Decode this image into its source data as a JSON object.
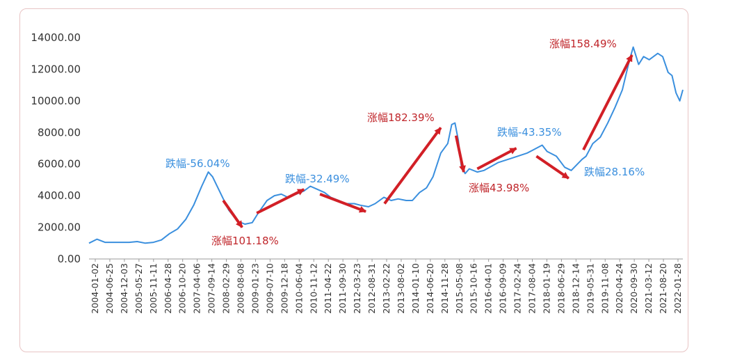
{
  "chart_data": {
    "type": "line",
    "title": "",
    "xlabel": "",
    "ylabel": "",
    "ylim": [
      0,
      14000
    ],
    "y_ticks": [
      "0.00",
      "2000.00",
      "4000.00",
      "6000.00",
      "8000.00",
      "10000.00",
      "12000.00",
      "14000.00"
    ],
    "x_ticks": [
      "2004-01-02",
      "2004-06-25",
      "2004-12-03",
      "2005-05-27",
      "2005-11-11",
      "2006-04-28",
      "2006-10-20",
      "2007-04-06",
      "2007-09-14",
      "2008-02-29",
      "2008-08-08",
      "2009-01-23",
      "2009-07-10",
      "2009-12-18",
      "2010-06-04",
      "2010-11-12",
      "2011-04-22",
      "2011-09-30",
      "2012-03-23",
      "2012-08-31",
      "2013-02-22",
      "2013-08-02",
      "2014-01-10",
      "2014-06-20",
      "2014-11-28",
      "2015-05-08",
      "2015-10-16",
      "2016-04-01",
      "2016-09-09",
      "2017-02-24",
      "2017-08-04",
      "2018-01-19",
      "2018-06-29",
      "2018-12-14",
      "2019-05-31",
      "2019-11-08",
      "2020-04-24",
      "2020-09-30",
      "2021-03-12",
      "2021-08-20",
      "2022-01-28"
    ],
    "grid": false,
    "series": [
      {
        "color": "#3a8fde",
        "x": [
          "2004-01-02",
          "2004-04-01",
          "2004-07-01",
          "2004-10-01",
          "2005-01-01",
          "2005-04-01",
          "2005-07-01",
          "2005-10-01",
          "2006-01-01",
          "2006-04-01",
          "2006-07-01",
          "2006-10-01",
          "2007-01-01",
          "2007-04-01",
          "2007-07-01",
          "2007-09-14",
          "2007-11-01",
          "2008-01-01",
          "2008-03-01",
          "2008-05-01",
          "2008-08-08",
          "2008-11-01",
          "2009-01-23",
          "2009-04-01",
          "2009-07-10",
          "2009-10-01",
          "2009-12-18",
          "2010-03-01",
          "2010-06-04",
          "2010-09-01",
          "2010-11-12",
          "2011-02-01",
          "2011-04-22",
          "2011-07-01",
          "2011-09-30",
          "2011-12-15",
          "2012-03-23",
          "2012-06-01",
          "2012-08-31",
          "2012-11-15",
          "2013-02-22",
          "2013-05-15",
          "2013-08-02",
          "2013-11-01",
          "2014-01-10",
          "2014-04-01",
          "2014-06-20",
          "2014-09-01",
          "2014-11-28",
          "2015-02-15",
          "2015-04-01",
          "2015-05-08",
          "2015-06-15",
          "2015-07-20",
          "2015-08-31",
          "2015-10-16",
          "2016-01-15",
          "2016-04-01",
          "2016-09-09",
          "2017-02-24",
          "2017-08-04",
          "2018-01-19",
          "2018-03-15",
          "2018-06-29",
          "2018-10-01",
          "2018-12-14",
          "2019-04-15",
          "2019-05-31",
          "2019-08-15",
          "2019-11-08",
          "2020-02-01",
          "2020-04-24",
          "2020-07-15",
          "2020-09-30",
          "2020-11-15",
          "2021-01-15",
          "2021-03-12",
          "2021-05-15",
          "2021-08-20",
          "2021-10-15",
          "2021-12-15",
          "2022-01-28",
          "2022-03-15",
          "2022-04-26",
          "2022-05-31"
        ],
        "y": [
          1000,
          1250,
          1050,
          1050,
          1050,
          1050,
          1100,
          1000,
          1050,
          1200,
          1600,
          1900,
          2500,
          3400,
          4600,
          5500,
          5200,
          4500,
          3800,
          3100,
          2400,
          2200,
          2300,
          2900,
          3700,
          4000,
          4100,
          3900,
          4100,
          4300,
          4600,
          4400,
          4200,
          3900,
          3700,
          3500,
          3500,
          3400,
          3300,
          3500,
          3900,
          3700,
          3800,
          3700,
          3700,
          4200,
          4500,
          5200,
          6700,
          7300,
          8500,
          8600,
          7500,
          5800,
          5400,
          5700,
          5500,
          5600,
          6100,
          6400,
          6700,
          7200,
          6800,
          6500,
          5800,
          5600,
          6300,
          6500,
          7300,
          7700,
          8600,
          9600,
          10700,
          12500,
          13400,
          12300,
          12800,
          12600,
          13000,
          12800,
          11800,
          11600,
          10500,
          10000,
          10700
        ]
      }
    ],
    "annotations": [
      {
        "text": "跌幅-56.04%",
        "color": "#3a8fde"
      },
      {
        "text": "涨幅101.18%",
        "color": "#c0262b"
      },
      {
        "text": "跌幅-32.49%",
        "color": "#3a8fde"
      },
      {
        "text": "涨幅182.39%",
        "color": "#c0262b"
      },
      {
        "text": "涨幅43.98%",
        "color": "#c0262b"
      },
      {
        "text": "跌幅-43.35%",
        "color": "#3a8fde"
      },
      {
        "text": "跌幅28.16%",
        "color": "#3a8fde"
      },
      {
        "text": "涨幅158.49%",
        "color": "#c0262b"
      }
    ],
    "arrows": [
      {
        "from_date": "2008-03-01",
        "from_value": 3700,
        "to_date": "2008-10-01",
        "to_value": 2000
      },
      {
        "from_date": "2009-03-15",
        "from_value": 2900,
        "to_date": "2010-09-01",
        "to_value": 4400
      },
      {
        "from_date": "2011-03-01",
        "from_value": 4100,
        "to_date": "2012-08-01",
        "to_value": 3000
      },
      {
        "from_date": "2013-03-01",
        "from_value": 3500,
        "to_date": "2014-11-28",
        "to_value": 8300
      },
      {
        "from_date": "2015-05-20",
        "from_value": 7800,
        "to_date": "2015-08-15",
        "to_value": 5500
      },
      {
        "from_date": "2016-01-15",
        "from_value": 5700,
        "to_date": "2017-04-01",
        "to_value": 7000
      },
      {
        "from_date": "2017-11-15",
        "from_value": 6500,
        "to_date": "2018-11-15",
        "to_value": 5100
      },
      {
        "from_date": "2019-05-01",
        "from_value": 6900,
        "to_date": "2020-11-01",
        "to_value": 12900
      }
    ]
  }
}
